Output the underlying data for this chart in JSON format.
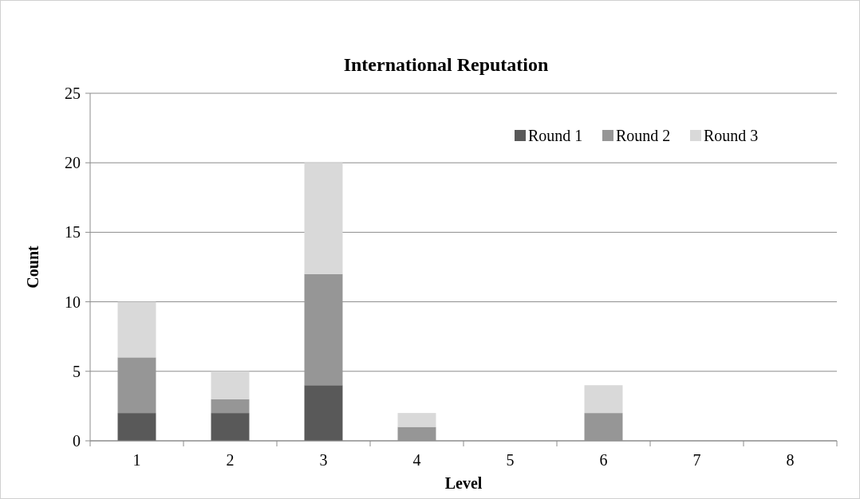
{
  "chart_data": {
    "type": "bar",
    "title": "International Reputation",
    "xlabel": "Level",
    "ylabel": "Count",
    "categories": [
      "1",
      "2",
      "3",
      "4",
      "5",
      "6",
      "7",
      "8"
    ],
    "stacked": true,
    "ylim": [
      0,
      25
    ],
    "yticks": [
      0,
      5,
      10,
      15,
      20,
      25
    ],
    "grid": "y",
    "legend": "top right",
    "series": [
      {
        "name": "Round 1",
        "color": "#595959",
        "values": [
          2,
          2,
          4,
          0,
          0,
          0,
          0,
          0
        ]
      },
      {
        "name": "Round 2",
        "color": "#969696",
        "values": [
          4,
          1,
          8,
          1,
          0,
          2,
          0,
          0
        ]
      },
      {
        "name": "Round 3",
        "color": "#d9d9d9",
        "values": [
          4,
          2,
          8,
          1,
          0,
          2,
          0,
          0
        ]
      }
    ]
  }
}
